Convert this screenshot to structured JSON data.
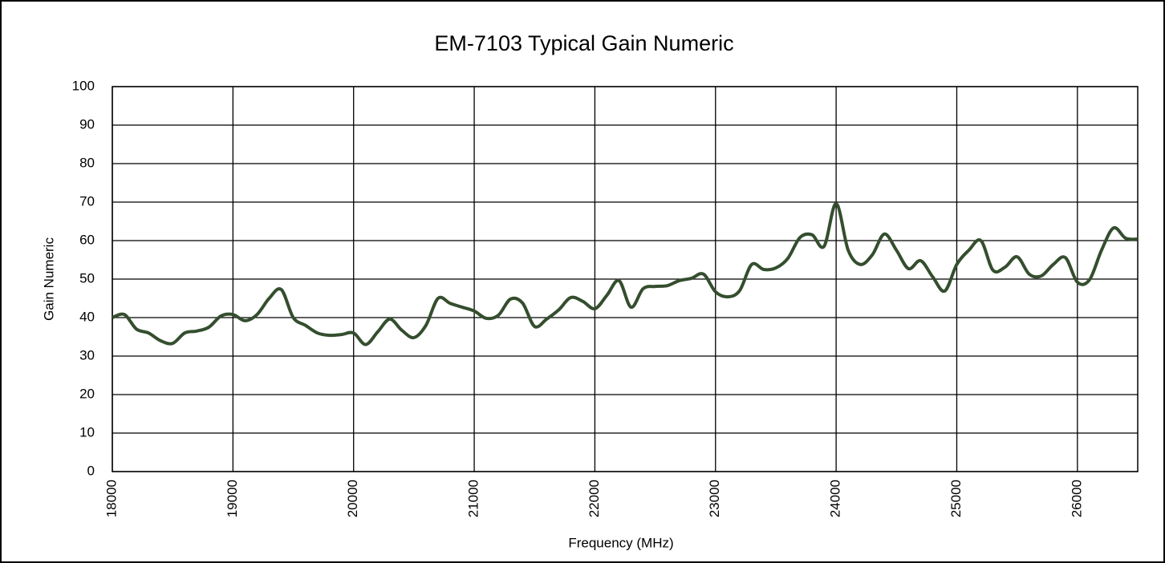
{
  "chart_data": {
    "type": "line",
    "title": "EM-7103 Typical Gain Numeric",
    "xlabel": "Frequency (MHz)",
    "ylabel": "Gain Numeric",
    "x": [
      18000,
      18100,
      18200,
      18300,
      18400,
      18500,
      18600,
      18700,
      18800,
      18900,
      19000,
      19100,
      19200,
      19300,
      19400,
      19500,
      19600,
      19700,
      19800,
      19900,
      20000,
      20100,
      20200,
      20300,
      20400,
      20500,
      20600,
      20700,
      20800,
      20900,
      21000,
      21100,
      21200,
      21300,
      21400,
      21500,
      21600,
      21700,
      21800,
      21900,
      22000,
      22100,
      22200,
      22300,
      22400,
      22500,
      22600,
      22700,
      22800,
      22900,
      23000,
      23100,
      23200,
      23300,
      23400,
      23500,
      23600,
      23700,
      23800,
      23900,
      24000,
      24100,
      24200,
      24300,
      24400,
      24500,
      24600,
      24700,
      24800,
      24900,
      25000,
      25100,
      25200,
      25300,
      25400,
      25500,
      25600,
      25700,
      25800,
      25900,
      26000,
      26100,
      26200,
      26300,
      26400,
      26500
    ],
    "series": [
      {
        "name": "Gain Numeric",
        "color": "#344e2e",
        "values": [
          40,
          40.8,
          37,
          36,
          34,
          33.3,
          36,
          36.5,
          37.5,
          40.4,
          40.8,
          39.2,
          40.8,
          45,
          47.3,
          40,
          38,
          36,
          35.4,
          35.6,
          36,
          33,
          36.3,
          39.6,
          36.7,
          34.8,
          38,
          45,
          43.7,
          42.7,
          41.7,
          39.8,
          40.6,
          44.8,
          43.8,
          37.7,
          39.6,
          42,
          45.2,
          44.2,
          42.3,
          45.8,
          49.6,
          42.7,
          47.5,
          48.1,
          48.3,
          49.6,
          50.2,
          51.3,
          46.7,
          45.4,
          47,
          53.8,
          52.5,
          52.9,
          55.4,
          60.8,
          61.5,
          58.5,
          69.6,
          57.5,
          53.8,
          56.3,
          61.7,
          57.5,
          52.7,
          54.8,
          50.6,
          46.9,
          53.8,
          57.5,
          60,
          52.3,
          53.1,
          55.8,
          51.3,
          50.8,
          53.8,
          55.6,
          49.2,
          49.8,
          57.5,
          63.3,
          60.6,
          60.4
        ]
      }
    ],
    "xlim": [
      18000,
      26500
    ],
    "xticks": [
      18000,
      19000,
      20000,
      21000,
      22000,
      23000,
      24000,
      25000,
      26000
    ],
    "ylim": [
      0,
      100
    ],
    "yticks": [
      0,
      10,
      20,
      30,
      40,
      50,
      60,
      70,
      80,
      90,
      100
    ],
    "grid": true
  }
}
